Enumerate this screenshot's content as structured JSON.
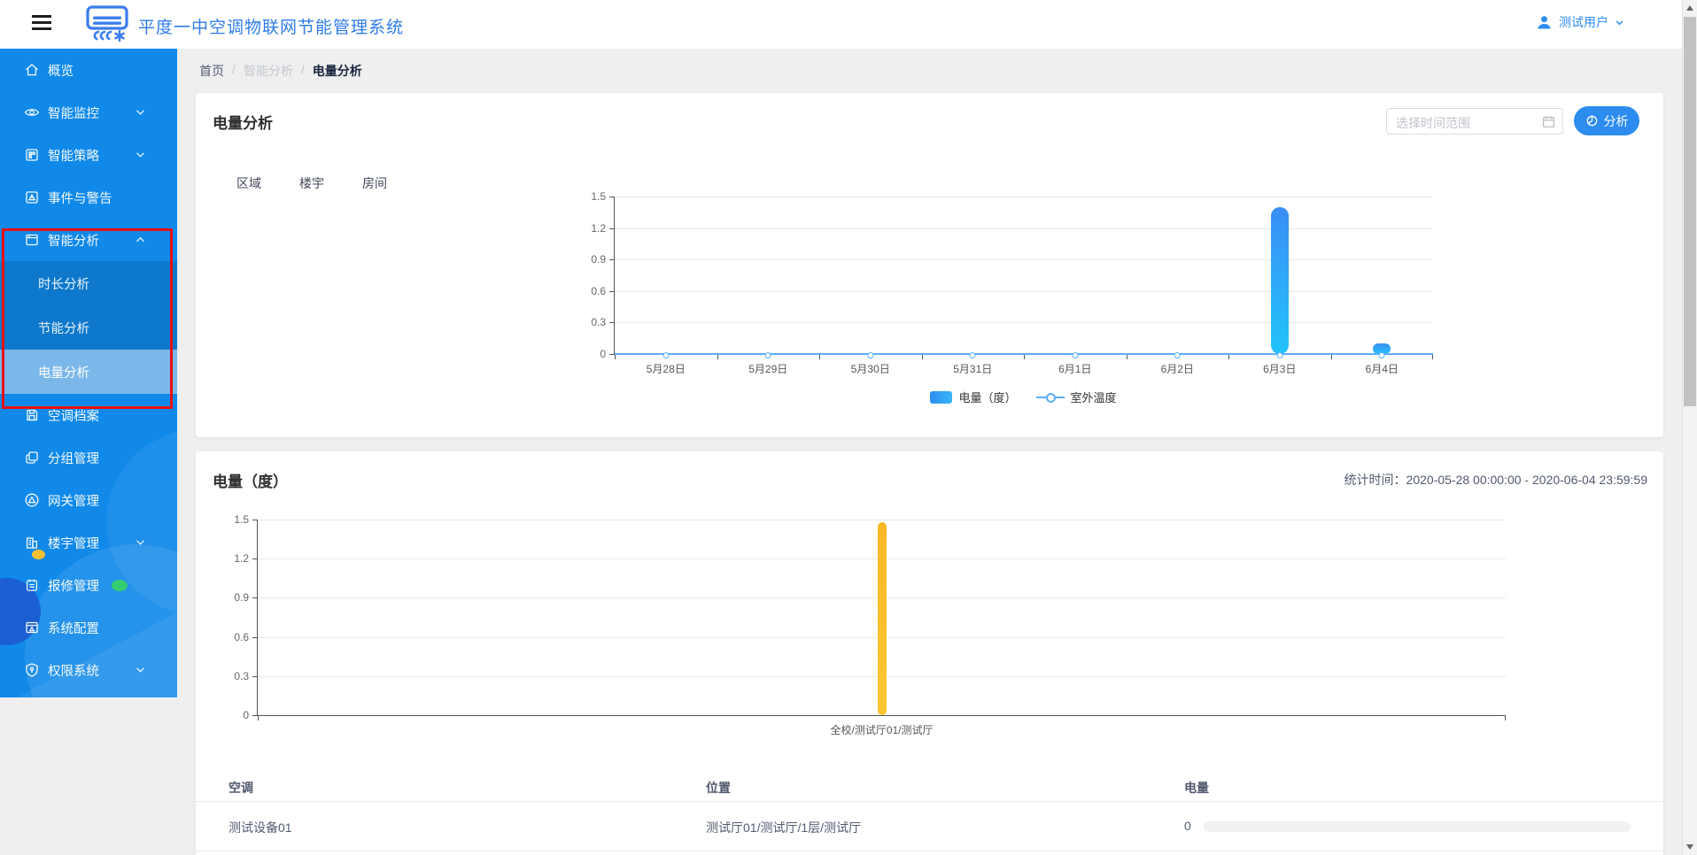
{
  "header": {
    "title": "平度一中空调物联网节能管理系统",
    "user": {
      "name": "测试用户"
    }
  },
  "breadcrumb": {
    "items": [
      "首页",
      "智能分析",
      "电量分析"
    ]
  },
  "sidebar": {
    "items": [
      {
        "label": "概览",
        "icon": "home-icon"
      },
      {
        "label": "智能监控",
        "icon": "eye-icon",
        "chevron": "down"
      },
      {
        "label": "智能策略",
        "icon": "strategy-icon",
        "chevron": "down"
      },
      {
        "label": "事件与警告",
        "icon": "event-icon"
      },
      {
        "label": "智能分析",
        "icon": "analysis-icon",
        "chevron": "up",
        "children": [
          {
            "label": "时长分析"
          },
          {
            "label": "节能分析"
          },
          {
            "label": "电量分析",
            "selected": true
          }
        ]
      },
      {
        "label": "空调档案",
        "icon": "archive-icon"
      },
      {
        "label": "分组管理",
        "icon": "group-icon"
      },
      {
        "label": "网关管理",
        "icon": "gateway-icon"
      },
      {
        "label": "楼宇管理",
        "icon": "building-icon",
        "chevron": "down",
        "badge": "yellow"
      },
      {
        "label": "报修管理",
        "icon": "notebook-icon",
        "badge": "green"
      },
      {
        "label": "系统配置",
        "icon": "config-icon"
      },
      {
        "label": "权限系统",
        "icon": "shield-icon",
        "chevron": "down"
      }
    ]
  },
  "analysis_card": {
    "title": "电量分析",
    "date_picker_placeholder": "选择时间范围",
    "analyze_button": "分析",
    "tabs": [
      "区域",
      "楼宇",
      "房间"
    ]
  },
  "detail_card": {
    "title": "电量（度）",
    "stat_time_label": "统计时间：",
    "stat_time_value": "2020-05-28 00:00:00 - 2020-06-04 23:59:59"
  },
  "table": {
    "headers": [
      "空调",
      "位置",
      "电量"
    ],
    "rows": [
      {
        "device": "测试设备01",
        "location": "测试厅01/测试厅/1层/测试厅",
        "energy": "0"
      }
    ]
  },
  "chart_data": [
    {
      "type": "bar",
      "title": "电量分析（按日）",
      "categories": [
        "5月28日",
        "5月29日",
        "5月30日",
        "5月31日",
        "6月1日",
        "6月2日",
        "6月3日",
        "6月4日"
      ],
      "series": [
        {
          "name": "电量（度）",
          "type": "bar",
          "values": [
            0,
            0,
            0,
            0,
            0,
            0,
            1.4,
            0.1
          ],
          "color": "#2d8cf0"
        },
        {
          "name": "室外温度",
          "type": "line",
          "values": [
            0,
            0,
            0,
            0,
            0,
            0,
            0,
            0
          ],
          "color": "#5cadff"
        }
      ],
      "yticks": [
        0,
        0.3,
        0.6,
        0.9,
        1.2,
        1.5
      ],
      "ylim": [
        0,
        1.5
      ],
      "legend_position": "bottom",
      "grid": true
    },
    {
      "type": "bar",
      "title": "电量（度）按位置",
      "categories": [
        "全校/测试厅01/测试厅"
      ],
      "values": [
        1.48
      ],
      "color": "#fbbe23",
      "yticks": [
        0,
        0.3,
        0.6,
        0.9,
        1.2,
        1.5
      ],
      "ylim": [
        0,
        1.5
      ],
      "grid": true
    }
  ]
}
